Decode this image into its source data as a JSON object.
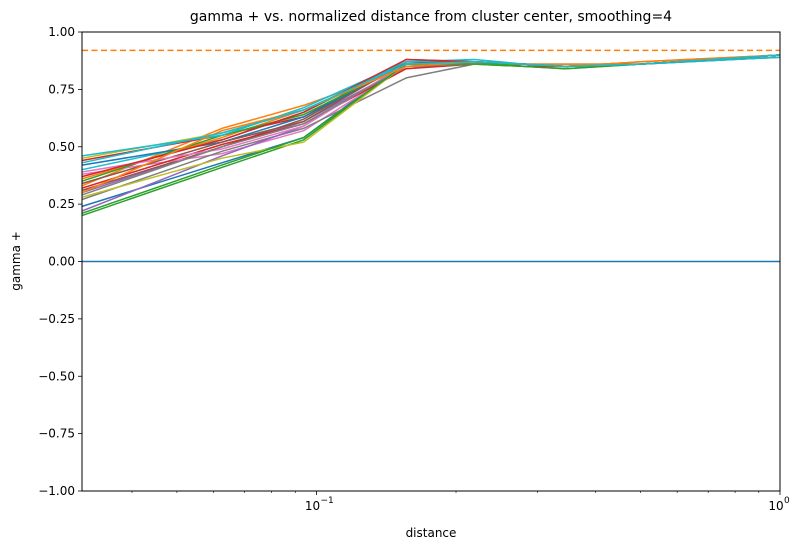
{
  "chart_data": {
    "type": "line",
    "title": "gamma + vs. normalized distance from cluster center, smoothing=4",
    "xlabel": "distance",
    "ylabel": "gamma +",
    "xscale": "log",
    "xlim": [
      0.0312,
      1.0
    ],
    "ylim": [
      -1.0,
      1.0
    ],
    "grid": false,
    "legend": "none",
    "yticks": [
      {
        "value": -1.0,
        "label": "−1.00"
      },
      {
        "value": -0.75,
        "label": "−0.75"
      },
      {
        "value": -0.5,
        "label": "−0.50"
      },
      {
        "value": -0.25,
        "label": "−0.25"
      },
      {
        "value": 0.0,
        "label": "0.00"
      },
      {
        "value": 0.25,
        "label": "0.25"
      },
      {
        "value": 0.5,
        "label": "0.50"
      },
      {
        "value": 0.75,
        "label": "0.75"
      },
      {
        "value": 1.0,
        "label": "1.00"
      }
    ],
    "xticks": [
      {
        "value": 0.1,
        "label": "10",
        "exponent": "−1"
      },
      {
        "value": 1.0,
        "label": "10",
        "exponent": "0"
      }
    ],
    "x": [
      0.0312,
      0.0625,
      0.0938,
      0.1562,
      0.2188,
      0.2812,
      0.3438,
      0.5,
      1.0
    ],
    "reference_lines": [
      {
        "y": 0.0,
        "color": "#1f77b4",
        "style": "solid"
      },
      {
        "y": 0.92,
        "color": "#ff7f0e",
        "style": "dashed"
      }
    ],
    "series": [
      {
        "color": "#1f77b4",
        "values": [
          0.24,
          0.43,
          0.54,
          0.87,
          0.87,
          0.86,
          0.85,
          0.86,
          0.9
        ]
      },
      {
        "color": "#ff7f0e",
        "values": [
          0.33,
          0.58,
          0.68,
          0.84,
          0.87,
          0.86,
          0.85,
          0.87,
          0.9
        ]
      },
      {
        "color": "#2ca02c",
        "values": [
          0.2,
          0.41,
          0.53,
          0.86,
          0.86,
          0.85,
          0.84,
          0.86,
          0.9
        ]
      },
      {
        "color": "#d62728",
        "values": [
          0.44,
          0.55,
          0.63,
          0.88,
          0.87,
          0.85,
          0.85,
          0.86,
          0.9
        ]
      },
      {
        "color": "#9467bd",
        "values": [
          0.3,
          0.5,
          0.61,
          0.85,
          0.86,
          0.86,
          0.85,
          0.86,
          0.89
        ]
      },
      {
        "color": "#8c564b",
        "values": [
          0.31,
          0.5,
          0.62,
          0.87,
          0.87,
          0.86,
          0.85,
          0.86,
          0.9
        ]
      },
      {
        "color": "#e377c2",
        "values": [
          0.38,
          0.47,
          0.57,
          0.85,
          0.86,
          0.86,
          0.85,
          0.86,
          0.9
        ]
      },
      {
        "color": "#7f7f7f",
        "values": [
          0.27,
          0.48,
          0.58,
          0.8,
          0.86,
          0.86,
          0.86,
          0.86,
          0.89
        ]
      },
      {
        "color": "#bcbd22",
        "values": [
          0.45,
          0.56,
          0.66,
          0.86,
          0.86,
          0.86,
          0.85,
          0.86,
          0.9
        ]
      },
      {
        "color": "#17becf",
        "values": [
          0.4,
          0.53,
          0.65,
          0.87,
          0.86,
          0.86,
          0.85,
          0.86,
          0.9
        ]
      },
      {
        "color": "#1f77b4",
        "values": [
          0.42,
          0.52,
          0.63,
          0.86,
          0.87,
          0.86,
          0.85,
          0.86,
          0.9
        ]
      },
      {
        "color": "#ff7f0e",
        "values": [
          0.36,
          0.54,
          0.66,
          0.85,
          0.86,
          0.86,
          0.86,
          0.86,
          0.9
        ]
      },
      {
        "color": "#2ca02c",
        "values": [
          0.35,
          0.55,
          0.64,
          0.86,
          0.86,
          0.85,
          0.84,
          0.86,
          0.9
        ]
      },
      {
        "color": "#d62728",
        "values": [
          0.32,
          0.51,
          0.6,
          0.84,
          0.86,
          0.86,
          0.85,
          0.86,
          0.9
        ]
      },
      {
        "color": "#9467bd",
        "values": [
          0.22,
          0.46,
          0.59,
          0.86,
          0.87,
          0.86,
          0.85,
          0.86,
          0.9
        ]
      },
      {
        "color": "#8c564b",
        "values": [
          0.34,
          0.52,
          0.61,
          0.87,
          0.86,
          0.86,
          0.85,
          0.86,
          0.9
        ]
      },
      {
        "color": "#e377c2",
        "values": [
          0.39,
          0.49,
          0.59,
          0.86,
          0.86,
          0.86,
          0.85,
          0.86,
          0.9
        ]
      },
      {
        "color": "#7f7f7f",
        "values": [
          0.29,
          0.5,
          0.6,
          0.85,
          0.86,
          0.86,
          0.85,
          0.86,
          0.9
        ]
      },
      {
        "color": "#bcbd22",
        "values": [
          0.28,
          0.45,
          0.52,
          0.86,
          0.86,
          0.86,
          0.85,
          0.86,
          0.9
        ]
      },
      {
        "color": "#17becf",
        "values": [
          0.46,
          0.55,
          0.67,
          0.87,
          0.88,
          0.86,
          0.85,
          0.86,
          0.89
        ]
      },
      {
        "color": "#d62728",
        "values": [
          0.37,
          0.53,
          0.65,
          0.88,
          0.87,
          0.86,
          0.85,
          0.86,
          0.9
        ]
      },
      {
        "color": "#2ca02c",
        "values": [
          0.21,
          0.42,
          0.54,
          0.86,
          0.86,
          0.86,
          0.85,
          0.86,
          0.9
        ]
      },
      {
        "color": "#ff7f0e",
        "values": [
          0.3,
          0.57,
          0.66,
          0.85,
          0.87,
          0.86,
          0.85,
          0.87,
          0.9
        ]
      },
      {
        "color": "#17becf",
        "values": [
          0.43,
          0.56,
          0.66,
          0.86,
          0.87,
          0.86,
          0.85,
          0.86,
          0.9
        ]
      }
    ]
  }
}
